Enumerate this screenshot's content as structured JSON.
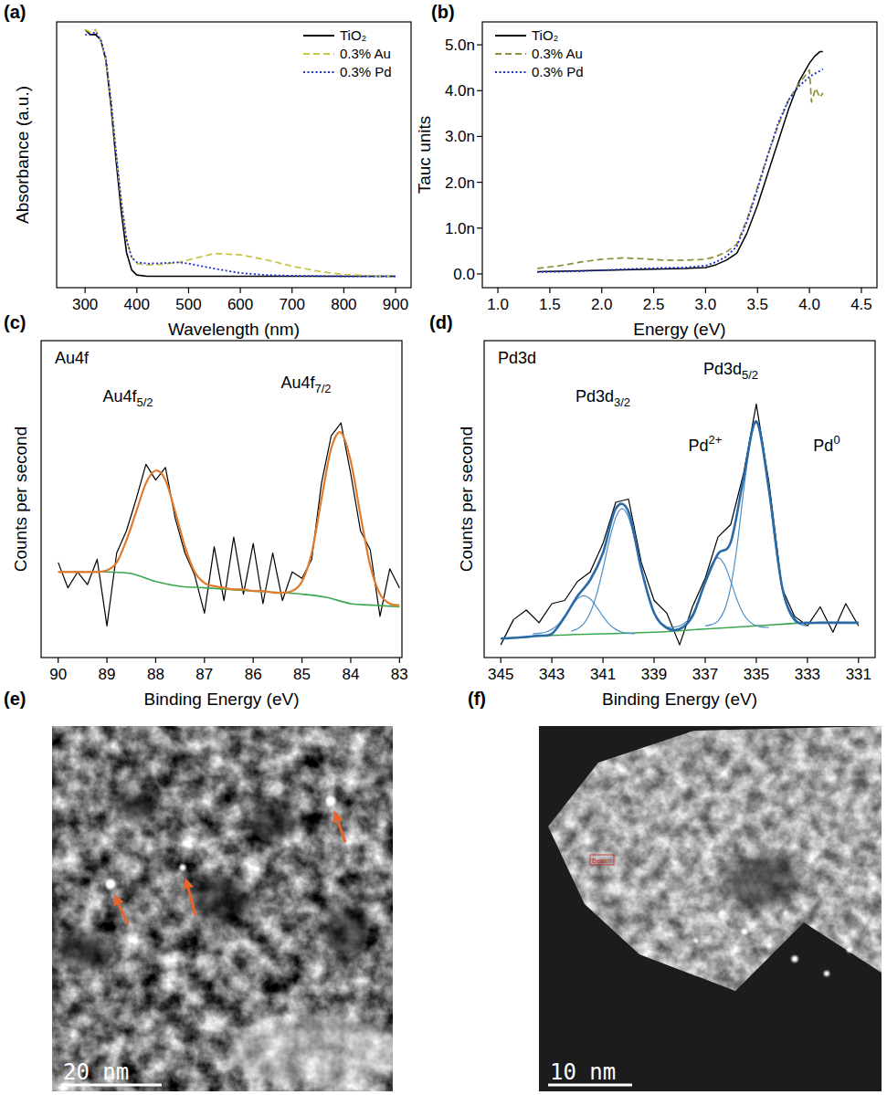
{
  "chart_data": [
    {
      "panel": "(a)",
      "type": "line",
      "x_label": "Wavelength (nm)",
      "y_label": "Absorbance (a.u.)",
      "xlim": [
        245,
        930
      ],
      "xticks": [
        300,
        400,
        500,
        600,
        700,
        800,
        900
      ],
      "ylim": [
        0,
        1.05
      ],
      "tick_labels": "x",
      "legend": "upper right",
      "x": [
        300,
        310,
        320,
        330,
        340,
        350,
        360,
        370,
        380,
        390,
        400,
        420,
        450,
        480,
        500,
        550,
        600,
        650,
        700,
        750,
        800,
        850,
        900
      ],
      "series": [
        {
          "name": "TiO₂",
          "color": "#000000",
          "line_style": "solid",
          "values": [
            1.02,
            1.0,
            1.0,
            0.98,
            0.9,
            0.72,
            0.5,
            0.3,
            0.14,
            0.07,
            0.05,
            0.045,
            0.045,
            0.045,
            0.045,
            0.045,
            0.045,
            0.045,
            0.045,
            0.045,
            0.045,
            0.045,
            0.045
          ]
        },
        {
          "name": "0.3% Au",
          "color": "#c6c64a",
          "line_style": "dashed",
          "values": [
            1.02,
            1.01,
            1.02,
            0.98,
            0.9,
            0.74,
            0.53,
            0.34,
            0.19,
            0.12,
            0.095,
            0.09,
            0.092,
            0.1,
            0.11,
            0.135,
            0.13,
            0.11,
            0.085,
            0.065,
            0.052,
            0.047,
            0.045
          ]
        },
        {
          "name": "0.3% Pd",
          "color": "#1a2fd0",
          "line_style": "dotted",
          "values": [
            1.0,
            1.0,
            1.01,
            0.98,
            0.91,
            0.74,
            0.53,
            0.34,
            0.19,
            0.12,
            0.1,
            0.095,
            0.097,
            0.1,
            0.095,
            0.075,
            0.058,
            0.05,
            0.047,
            0.046,
            0.045,
            0.045,
            0.045
          ]
        }
      ]
    },
    {
      "panel": "(b)",
      "type": "line",
      "x_label": "Energy (eV)",
      "y_label": "Tauc units",
      "xlim": [
        0.85,
        4.65
      ],
      "xticks": [
        {
          "value": 1,
          "label": "1.0"
        },
        1.5,
        {
          "value": 2,
          "label": "2.0"
        },
        2.5,
        {
          "value": 3,
          "label": "3.0"
        },
        3.5,
        {
          "value": 4,
          "label": "4.0"
        },
        4.5
      ],
      "ylim": [
        -3e-10,
        5.5e-09
      ],
      "yticks": [
        {
          "value": 0,
          "label": "0.0"
        },
        {
          "value": 1e-09,
          "label": "1.0n"
        },
        {
          "value": 2e-09,
          "label": "2.0n"
        },
        {
          "value": 3e-09,
          "label": "3.0n"
        },
        {
          "value": 4e-09,
          "label": "4.0n"
        },
        {
          "value": 5e-09,
          "label": "5.0n"
        }
      ],
      "legend": "upper left",
      "series": [
        {
          "name": "TiO₂",
          "color": "#000000",
          "line_style": "solid",
          "x": [
            1.38,
            1.6,
            1.8,
            2.0,
            2.2,
            2.4,
            2.6,
            2.8,
            3.0,
            3.1,
            3.2,
            3.3,
            3.4,
            3.5,
            3.6,
            3.7,
            3.8,
            3.9,
            4.0,
            4.05,
            4.1,
            4.13
          ],
          "values": [
            5e-11,
            6e-11,
            7e-11,
            8e-11,
            9e-11,
            1e-10,
            1.1e-10,
            1.2e-10,
            1.4e-10,
            2e-10,
            3e-10,
            4.5e-10,
            9e-10,
            1.5e-09,
            2.2e-09,
            2.9e-09,
            3.6e-09,
            4.2e-09,
            4.6e-09,
            4.75e-09,
            4.85e-09,
            4.85e-09
          ]
        },
        {
          "name": "0.3% Au",
          "color": "#8f8f3c",
          "line_style": "dashed",
          "x": [
            1.38,
            1.6,
            1.8,
            2.0,
            2.2,
            2.4,
            2.6,
            2.8,
            3.0,
            3.1,
            3.2,
            3.3,
            3.4,
            3.5,
            3.6,
            3.7,
            3.8,
            3.9,
            3.95,
            4.0,
            4.02,
            4.06,
            4.1,
            4.13
          ],
          "values": [
            1.2e-10,
            1.8e-10,
            2.6e-10,
            3.2e-10,
            3.5e-10,
            3.3e-10,
            3e-10,
            3e-10,
            3.2e-10,
            3.8e-10,
            4.8e-10,
            6.5e-10,
            1.2e-09,
            1.9e-09,
            2.6e-09,
            3.25e-09,
            3.8e-09,
            4.15e-09,
            4.3e-09,
            4.45e-09,
            3.75e-09,
            4.05e-09,
            3.85e-09,
            3.95e-09
          ]
        },
        {
          "name": "0.3% Pd",
          "color": "#1a2fd0",
          "line_style": "dotted",
          "x": [
            1.38,
            1.6,
            1.8,
            2.0,
            2.2,
            2.4,
            2.6,
            2.8,
            3.0,
            3.1,
            3.2,
            3.3,
            3.4,
            3.5,
            3.6,
            3.7,
            3.8,
            3.9,
            4.0,
            4.05,
            4.1,
            4.13
          ],
          "values": [
            4e-11,
            5e-11,
            6e-11,
            8e-11,
            1e-10,
            1.2e-10,
            1.3e-10,
            1.4e-10,
            1.8e-10,
            2.6e-10,
            3.8e-10,
            6e-10,
            1.15e-09,
            1.85e-09,
            2.6e-09,
            3.3e-09,
            3.8e-09,
            4.1e-09,
            4.3e-09,
            4.37e-09,
            4.43e-09,
            4.47e-09
          ]
        }
      ]
    },
    {
      "panel": "(c)",
      "type": "line",
      "x_label": "Binding Energy (eV)",
      "y_label": "Counts per second",
      "xlim": [
        90.35,
        82.95
      ],
      "xticks": [
        90,
        89,
        88,
        87,
        86,
        85,
        84,
        83
      ],
      "ylim": [
        0,
        1
      ],
      "tick_labels": "x",
      "annotations": [
        {
          "text": "Au4f"
        },
        {
          "text": "Au4f",
          "sub": "5/2"
        },
        {
          "text": "Au4f",
          "sub": "7/2"
        }
      ],
      "x": [
        90,
        89.8,
        89.6,
        89.4,
        89.2,
        89,
        88.8,
        88.6,
        88.4,
        88.2,
        88,
        87.8,
        87.6,
        87.4,
        87.2,
        87,
        86.8,
        86.6,
        86.4,
        86.2,
        86,
        85.8,
        85.6,
        85.4,
        85.2,
        85,
        84.8,
        84.6,
        84.4,
        84.2,
        84,
        83.8,
        83.6,
        83.4,
        83.2,
        83
      ],
      "series": [
        {
          "color": "#000000",
          "line_style": "solid",
          "values": [
            0.3,
            0.22,
            0.27,
            0.23,
            0.31,
            0.1,
            0.33,
            0.4,
            0.5,
            0.61,
            0.56,
            0.6,
            0.44,
            0.33,
            0.26,
            0.14,
            0.35,
            0.18,
            0.38,
            0.2,
            0.36,
            0.17,
            0.33,
            0.18,
            0.27,
            0.25,
            0.31,
            0.55,
            0.7,
            0.74,
            0.58,
            0.4,
            0.34,
            0.13,
            0.28,
            0.22
          ]
        },
        {
          "color": "#3aa84e",
          "line_style": "solid",
          "x": [
            90,
            89,
            88.5,
            88,
            87.5,
            87,
            86,
            85,
            84.5,
            84,
            83.5,
            83
          ],
          "values": [
            0.27,
            0.27,
            0.265,
            0.24,
            0.225,
            0.22,
            0.21,
            0.2,
            0.19,
            0.17,
            0.165,
            0.16
          ]
        },
        {
          "color": "#e07a2c",
          "line_style": "solid",
          "values": [
            0.27,
            0.27,
            0.27,
            0.27,
            0.27,
            0.275,
            0.3,
            0.37,
            0.46,
            0.55,
            0.59,
            0.56,
            0.46,
            0.35,
            0.27,
            0.235,
            0.225,
            0.22,
            0.215,
            0.215,
            0.21,
            0.21,
            0.205,
            0.205,
            0.21,
            0.24,
            0.33,
            0.5,
            0.66,
            0.71,
            0.62,
            0.45,
            0.29,
            0.2,
            0.17,
            0.165
          ]
        }
      ]
    },
    {
      "panel": "(d)",
      "type": "line",
      "x_label": "Binding Energy (eV)",
      "y_label": "Counts per second",
      "xlim": [
        345.65,
        330.35
      ],
      "xticks": [
        345,
        343,
        341,
        339,
        337,
        335,
        333,
        331
      ],
      "ylim": [
        0,
        1
      ],
      "tick_labels": "x",
      "annotations": [
        {
          "text": "Pd3d"
        },
        {
          "text": "Pd3d",
          "sub": "3/2"
        },
        {
          "text": "Pd3d",
          "sub": "5/2"
        },
        {
          "text": "Pd",
          "sup": "2+"
        },
        {
          "text": "Pd",
          "sup": "0"
        }
      ],
      "x": [
        345,
        344.5,
        344,
        343.5,
        343,
        342.5,
        342,
        341.5,
        341,
        340.5,
        340,
        339.5,
        339,
        338.5,
        338,
        337.5,
        337,
        336.5,
        336,
        335.5,
        335,
        334.5,
        334,
        333.5,
        333,
        332.5,
        332,
        331.5,
        331
      ],
      "series": [
        {
          "color": "#000000",
          "line_style": "solid",
          "values": [
            0.04,
            0.12,
            0.15,
            0.11,
            0.17,
            0.18,
            0.24,
            0.27,
            0.36,
            0.49,
            0.5,
            0.3,
            0.18,
            0.14,
            0.04,
            0.16,
            0.25,
            0.38,
            0.42,
            0.58,
            0.8,
            0.55,
            0.22,
            0.13,
            0.1,
            0.16,
            0.08,
            0.17,
            0.1
          ]
        },
        {
          "color": "#3aa84e",
          "line_style": "solid",
          "x": [
            345,
            343,
            341,
            339,
            337,
            335,
            333,
            331
          ],
          "values": [
            0.06,
            0.07,
            0.075,
            0.08,
            0.09,
            0.1,
            0.11,
            0.11
          ]
        },
        {
          "color": "#4a8fc9",
          "line_style": "solid",
          "x": [
            343.75,
            343.5,
            343.25,
            343,
            342.75,
            342.5,
            342.25,
            342,
            341.75,
            341.5,
            341.25,
            341,
            340.75,
            340.5,
            340.25,
            340,
            339.75
          ],
          "values": [
            0.075,
            0.077,
            0.08,
            0.089,
            0.105,
            0.13,
            0.16,
            0.185,
            0.195,
            0.185,
            0.16,
            0.13,
            0.105,
            0.089,
            0.08,
            0.077,
            0.075
          ]
        },
        {
          "color": "#4a8fc9",
          "line_style": "solid",
          "x": [
            342.25,
            342,
            341.75,
            341.5,
            341.25,
            341,
            340.75,
            340.5,
            340.25,
            340,
            339.75,
            339.5,
            339.25,
            339,
            338.75,
            338.5,
            338.25
          ],
          "values": [
            0.083,
            0.091,
            0.107,
            0.141,
            0.199,
            0.28,
            0.37,
            0.442,
            0.47,
            0.442,
            0.37,
            0.28,
            0.199,
            0.141,
            0.107,
            0.091,
            0.083
          ]
        },
        {
          "color": "#4a8fc9",
          "line_style": "solid",
          "x": [
            338.5,
            338.25,
            338,
            337.75,
            337.5,
            337.25,
            337,
            336.75,
            336.5,
            336.25,
            336,
            335.75,
            335.5,
            335.25,
            335,
            334.75,
            334.5
          ],
          "values": [
            0.095,
            0.096,
            0.1,
            0.112,
            0.137,
            0.182,
            0.241,
            0.293,
            0.315,
            0.293,
            0.241,
            0.182,
            0.137,
            0.112,
            0.1,
            0.096,
            0.095
          ]
        },
        {
          "color": "#4a8fc9",
          "line_style": "solid",
          "x": [
            337,
            336.75,
            336.5,
            336.25,
            336,
            335.75,
            335.5,
            335.25,
            335,
            334.75,
            334.5,
            334.25,
            334,
            333.75,
            333.5,
            333.25,
            333
          ],
          "values": [
            0.1,
            0.104,
            0.115,
            0.149,
            0.223,
            0.353,
            0.524,
            0.677,
            0.74,
            0.677,
            0.524,
            0.353,
            0.223,
            0.149,
            0.115,
            0.104,
            0.1
          ]
        },
        {
          "color": "#2b6aa6",
          "line_style": "solid",
          "values": [
            0.06,
            0.062,
            0.065,
            0.069,
            0.075,
            0.128,
            0.194,
            0.245,
            0.33,
            0.47,
            0.46,
            0.279,
            0.141,
            0.094,
            0.09,
            0.13,
            0.237,
            0.327,
            0.364,
            0.564,
            0.745,
            0.526,
            0.227,
            0.121,
            0.11,
            0.11,
            0.11,
            0.11,
            0.11
          ]
        }
      ]
    },
    {
      "panel": "(e)",
      "type": "image",
      "scale_bar": "20 nm"
    },
    {
      "panel": "(f)",
      "type": "image",
      "scale_bar": "10 nm",
      "annotations": [
        {
          "text": "Beam"
        }
      ]
    }
  ]
}
